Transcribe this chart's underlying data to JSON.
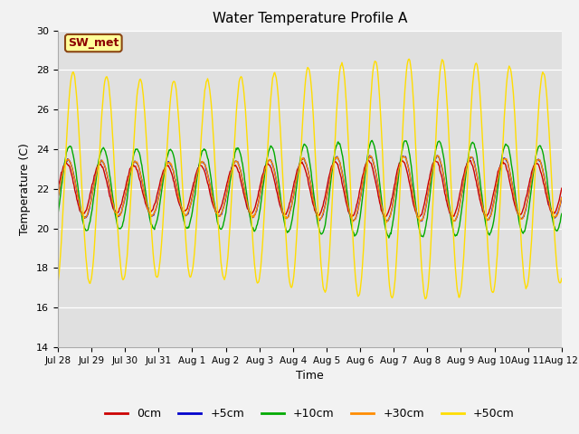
{
  "title": "Water Temperature Profile A",
  "xlabel": "Time",
  "ylabel": "Temperature (C)",
  "ylim": [
    14,
    30
  ],
  "yticks": [
    14,
    16,
    18,
    20,
    22,
    24,
    26,
    28,
    30
  ],
  "fig_facecolor": "#f2f2f2",
  "plot_bg_color": "#e0e0e0",
  "annotation_text": "SW_met",
  "annotation_bg": "#ffff99",
  "annotation_edge": "#8b4513",
  "annotation_text_color": "#8b0000",
  "lines": [
    {
      "label": "0cm",
      "color": "#cc0000",
      "amplitude": 1.3,
      "phase": 0.0,
      "mean": 22.0
    },
    {
      "label": "+5cm",
      "color": "#0000cc",
      "amplitude": 1.5,
      "phase": 0.05,
      "mean": 22.0
    },
    {
      "label": "+10cm",
      "color": "#00aa00",
      "amplitude": 2.2,
      "phase": 0.1,
      "mean": 22.0
    },
    {
      "label": "+30cm",
      "color": "#ff8c00",
      "amplitude": 1.5,
      "phase": 0.05,
      "mean": 22.0
    },
    {
      "label": "+50cm",
      "color": "#ffdd00",
      "amplitude": 5.5,
      "phase": 0.2,
      "mean": 22.5
    }
  ],
  "xtick_labels": [
    "Jul 28",
    "Jul 29",
    "Jul 30",
    "Jul 31",
    "Aug 1",
    "Aug 2",
    "Aug 3",
    "Aug 4",
    "Aug 5",
    "Aug 6",
    "Aug 7",
    "Aug 8",
    "Aug 9",
    "Aug 10",
    "Aug 11",
    "Aug 12"
  ],
  "legend_colors": [
    "#cc0000",
    "#0000cc",
    "#00aa00",
    "#ff8c00",
    "#ffdd00"
  ],
  "legend_labels": [
    "0cm",
    "+5cm",
    "+10cm",
    "+30cm",
    "+50cm"
  ]
}
